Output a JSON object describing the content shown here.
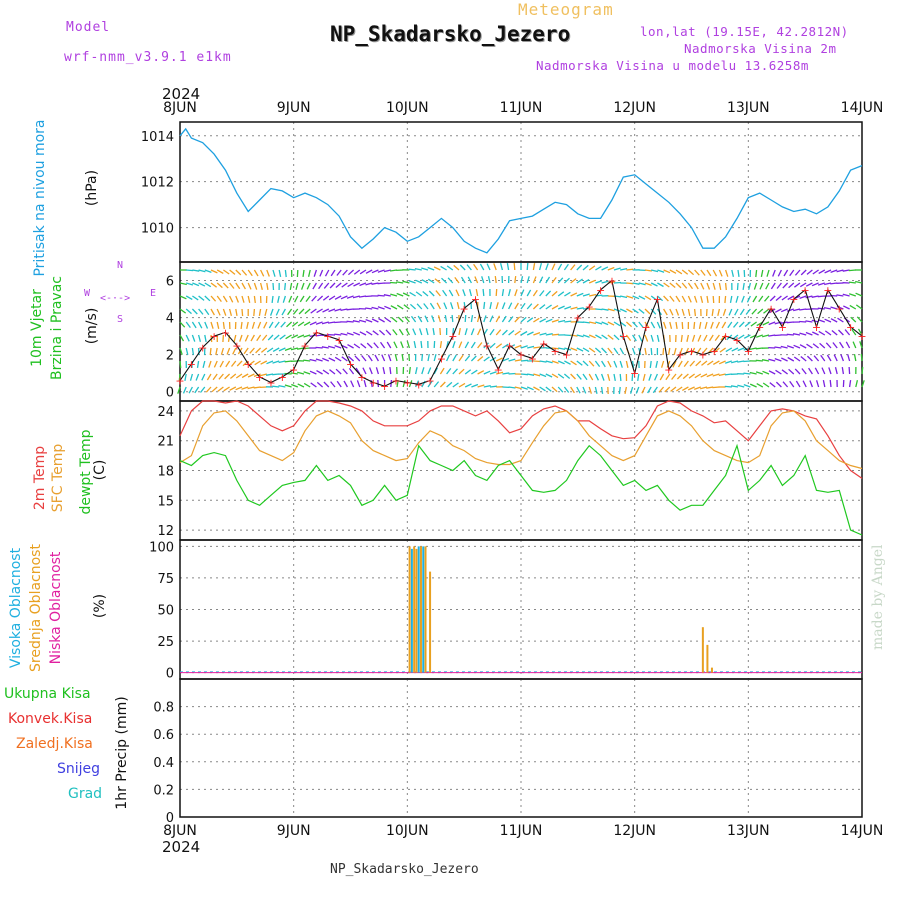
{
  "header": {
    "model_label": "Model",
    "model_value": "wrf-nmm_v3.9.1  e1km",
    "meteogram": "Meteogram",
    "station": "NP_Skadarsko_Jezero",
    "lonlat": "lon,lat (19.15E, 42.2812N)",
    "alt": "Nadmorska Visina 2m",
    "alt_model": "Nadmorska Visina u modelu 13.6258m",
    "year_top": "2024",
    "year_bottom": "2024",
    "footer": "NP_Skadarsko_Jezero",
    "credit": "made by Angel"
  },
  "colors": {
    "pressure": "#1ea0e0",
    "temp2m": "#e84040",
    "sfc": "#e8a030",
    "dew": "#20c820",
    "high": "#20b0e0",
    "mid": "#e8a020",
    "low": "#e020a0",
    "ukupna": "#20c020",
    "konvek": "#e83030",
    "zaledj": "#f07020",
    "snijeg": "#4040e0",
    "grad": "#20c0c0",
    "wind_purple": "#7a20e0",
    "wind_green": "#30c030",
    "wind_cyan": "#20c0c8",
    "wind_orange": "#f0a020"
  },
  "days": [
    "8JUN",
    "9JUN",
    "10JUN",
    "11JUN",
    "12JUN",
    "13JUN",
    "14JUN"
  ],
  "chart_data": [
    {
      "type": "line",
      "panel": "pressure",
      "ylabel_main": "Pritisak na nivou mora",
      "ylabel_unit": "(hPa)",
      "ylim": [
        1008.5,
        1014.6
      ],
      "yticks": [
        1010,
        1012,
        1014
      ],
      "x_days": [
        0,
        0.05,
        0.1,
        0.2,
        0.3,
        0.4,
        0.5,
        0.6,
        0.7,
        0.8,
        0.9,
        1.0,
        1.1,
        1.2,
        1.3,
        1.4,
        1.5,
        1.6,
        1.7,
        1.8,
        1.9,
        2.0,
        2.1,
        2.2,
        2.3,
        2.4,
        2.5,
        2.6,
        2.7,
        2.8,
        2.9,
        3.0,
        3.1,
        3.2,
        3.3,
        3.4,
        3.5,
        3.6,
        3.7,
        3.8,
        3.9,
        4.0,
        4.1,
        4.2,
        4.3,
        4.4,
        4.5,
        4.6,
        4.7,
        4.8,
        4.9,
        5.0,
        5.1,
        5.2,
        5.3,
        5.4,
        5.5,
        5.6,
        5.7,
        5.8,
        5.9,
        6.0
      ],
      "values": [
        1014.0,
        1014.3,
        1013.9,
        1013.7,
        1013.2,
        1012.5,
        1011.5,
        1010.7,
        1011.2,
        1011.7,
        1011.6,
        1011.3,
        1011.5,
        1011.3,
        1011.0,
        1010.5,
        1009.6,
        1009.1,
        1009.5,
        1010.0,
        1009.8,
        1009.4,
        1009.6,
        1010.0,
        1010.4,
        1010.0,
        1009.4,
        1009.1,
        1008.9,
        1009.5,
        1010.3,
        1010.4,
        1010.5,
        1010.8,
        1011.1,
        1011.0,
        1010.6,
        1010.4,
        1010.4,
        1011.2,
        1012.2,
        1012.3,
        1011.9,
        1011.5,
        1011.1,
        1010.6,
        1010.0,
        1009.1,
        1009.1,
        1009.6,
        1010.4,
        1011.3,
        1011.5,
        1011.2,
        1010.9,
        1010.7,
        1010.8,
        1010.6,
        1010.9,
        1011.6,
        1012.5,
        1012.7
      ]
    },
    {
      "type": "line",
      "panel": "wind",
      "ylabel_main": "10m Vjetar",
      "ylabel_sub": "Brzina i Pravac",
      "ylabel_unit": "(m/s)",
      "compass": [
        "N",
        "S",
        "W",
        "E"
      ],
      "ylim": [
        -0.5,
        7.0
      ],
      "yticks": [
        0,
        2,
        4,
        6
      ],
      "x_days": [
        0,
        0.1,
        0.2,
        0.3,
        0.4,
        0.5,
        0.6,
        0.7,
        0.8,
        0.9,
        1.0,
        1.1,
        1.2,
        1.3,
        1.4,
        1.5,
        1.6,
        1.7,
        1.8,
        1.9,
        2.0,
        2.1,
        2.2,
        2.3,
        2.4,
        2.5,
        2.6,
        2.7,
        2.8,
        2.9,
        3.0,
        3.1,
        3.2,
        3.3,
        3.4,
        3.5,
        3.6,
        3.7,
        3.8,
        3.9,
        4.0,
        4.1,
        4.2,
        4.3,
        4.4,
        4.5,
        4.6,
        4.7,
        4.8,
        4.9,
        5.0,
        5.1,
        5.2,
        5.3,
        5.4,
        5.5,
        5.6,
        5.7,
        5.8,
        5.9,
        6.0
      ],
      "values": [
        0.6,
        1.5,
        2.4,
        3.0,
        3.2,
        2.5,
        1.5,
        0.8,
        0.5,
        0.8,
        1.2,
        2.5,
        3.2,
        3.0,
        2.8,
        1.5,
        0.8,
        0.5,
        0.3,
        0.6,
        0.5,
        0.4,
        0.6,
        1.8,
        3.0,
        4.5,
        5.0,
        2.5,
        1.2,
        2.5,
        2.0,
        1.8,
        2.6,
        2.2,
        2.0,
        4.0,
        4.6,
        5.5,
        6.0,
        3.0,
        1.0,
        3.5,
        5.0,
        1.2,
        2.0,
        2.2,
        2.0,
        2.2,
        3.0,
        2.8,
        2.2,
        3.5,
        4.5,
        3.5,
        5.0,
        5.5,
        3.5,
        5.5,
        4.5,
        3.5,
        3.0
      ]
    },
    {
      "type": "line",
      "panel": "temperature",
      "ylabel_lines": [
        "2m Temp",
        "SFC Temp",
        "dewpt Temp"
      ],
      "ylabel_unit": "(C)",
      "ylim": [
        11.0,
        25.0
      ],
      "yticks": [
        12,
        15,
        18,
        21,
        24
      ],
      "x_days": [
        0,
        0.1,
        0.2,
        0.3,
        0.4,
        0.5,
        0.6,
        0.7,
        0.8,
        0.9,
        1.0,
        1.1,
        1.2,
        1.3,
        1.4,
        1.5,
        1.6,
        1.7,
        1.8,
        1.9,
        2.0,
        2.1,
        2.2,
        2.3,
        2.4,
        2.5,
        2.6,
        2.7,
        2.8,
        2.9,
        3.0,
        3.1,
        3.2,
        3.3,
        3.4,
        3.5,
        3.6,
        3.7,
        3.8,
        3.9,
        4.0,
        4.1,
        4.2,
        4.3,
        4.4,
        4.5,
        4.6,
        4.7,
        4.8,
        4.9,
        5.0,
        5.1,
        5.2,
        5.3,
        5.4,
        5.5,
        5.6,
        5.7,
        5.8,
        5.9,
        6.0
      ],
      "series": [
        {
          "name": "2m Temp",
          "values": [
            21.5,
            24.0,
            25.0,
            25.0,
            24.8,
            25.0,
            24.5,
            23.5,
            22.5,
            22.0,
            22.5,
            24.0,
            25.0,
            25.0,
            24.8,
            24.5,
            24.0,
            23.0,
            22.5,
            22.5,
            22.5,
            23.0,
            24.0,
            24.5,
            24.5,
            24.0,
            23.5,
            24.0,
            23.0,
            21.8,
            22.2,
            23.5,
            24.2,
            24.5,
            24.0,
            23.0,
            23.0,
            22.2,
            21.5,
            21.2,
            21.3,
            22.5,
            24.5,
            25.0,
            24.8,
            24.0,
            23.5,
            22.8,
            23.0,
            22.0,
            21.0,
            22.5,
            24.0,
            24.2,
            24.0,
            23.5,
            23.2,
            21.5,
            19.5,
            18.0,
            17.2
          ]
        },
        {
          "name": "SFC Temp",
          "values": [
            18.8,
            19.5,
            22.5,
            23.8,
            24.0,
            23.0,
            21.5,
            20.0,
            19.5,
            19.0,
            19.8,
            22.0,
            23.5,
            24.0,
            23.5,
            22.8,
            21.0,
            20.0,
            19.5,
            19.0,
            19.2,
            20.8,
            22.0,
            21.5,
            20.5,
            20.0,
            19.2,
            18.8,
            18.6,
            18.6,
            19.0,
            20.8,
            22.5,
            23.8,
            24.0,
            23.0,
            21.5,
            20.5,
            19.5,
            19.0,
            19.5,
            21.5,
            23.5,
            24.0,
            23.5,
            22.5,
            21.0,
            20.0,
            19.5,
            19.0,
            18.8,
            19.5,
            22.5,
            23.8,
            24.0,
            23.0,
            21.0,
            20.0,
            19.0,
            18.5,
            18.2
          ]
        },
        {
          "name": "dewpt Temp",
          "values": [
            19.0,
            18.5,
            19.5,
            19.8,
            19.5,
            17.0,
            15.0,
            14.5,
            15.5,
            16.5,
            16.8,
            17.0,
            18.5,
            17.0,
            17.5,
            16.5,
            14.5,
            15.0,
            16.5,
            15.0,
            15.5,
            20.5,
            19.0,
            18.5,
            18.0,
            19.0,
            17.5,
            17.0,
            18.5,
            19.0,
            17.5,
            16.0,
            15.8,
            16.0,
            17.0,
            19.0,
            20.5,
            19.5,
            18.0,
            16.5,
            17.0,
            16.0,
            16.5,
            15.0,
            14.0,
            14.5,
            14.5,
            16.0,
            17.5,
            20.5,
            16.0,
            17.0,
            18.5,
            16.5,
            17.5,
            19.5,
            16.0,
            15.8,
            16.0,
            12.0,
            11.5
          ]
        }
      ]
    },
    {
      "type": "bar",
      "panel": "clouds",
      "ylabel_lines": [
        "Visoka Oblacnost",
        "Srednja Oblacnost",
        "Niska Oblacnost"
      ],
      "ylabel_unit": "(%)",
      "ylim": [
        -5,
        105
      ],
      "yticks": [
        0,
        25,
        50,
        75,
        100
      ],
      "series": [
        {
          "name": "Visoka Oblacnost",
          "x_days": [
            2.04,
            2.1,
            2.14
          ],
          "values": [
            98,
            100,
            100
          ]
        },
        {
          "name": "Srednja Oblacnost",
          "x_days": [
            2.02,
            2.06,
            2.08,
            2.12,
            2.16,
            2.2,
            4.6,
            4.64,
            4.68
          ],
          "values": [
            100,
            100,
            98,
            100,
            100,
            80,
            36,
            22,
            4
          ]
        },
        {
          "name": "Niska Oblacnost",
          "x_days": [],
          "values": []
        }
      ]
    },
    {
      "type": "bar",
      "panel": "precip",
      "ylabel_unit": "1hr Precip (mm)",
      "legend": [
        "Ukupna Kisa",
        "Konvek.Kisa",
        "Zaledj.Kisa",
        "Snijeg",
        "Grad"
      ],
      "ylim": [
        0,
        1.0
      ],
      "yticks": [
        0,
        0.2,
        0.4,
        0.6,
        0.8
      ],
      "series": [
        {
          "name": "Ukupna Kisa",
          "values": []
        },
        {
          "name": "Konvek.Kisa",
          "values": []
        },
        {
          "name": "Zaledj.Kisa",
          "values": []
        },
        {
          "name": "Snijeg",
          "values": []
        },
        {
          "name": "Grad",
          "values": []
        }
      ]
    }
  ]
}
